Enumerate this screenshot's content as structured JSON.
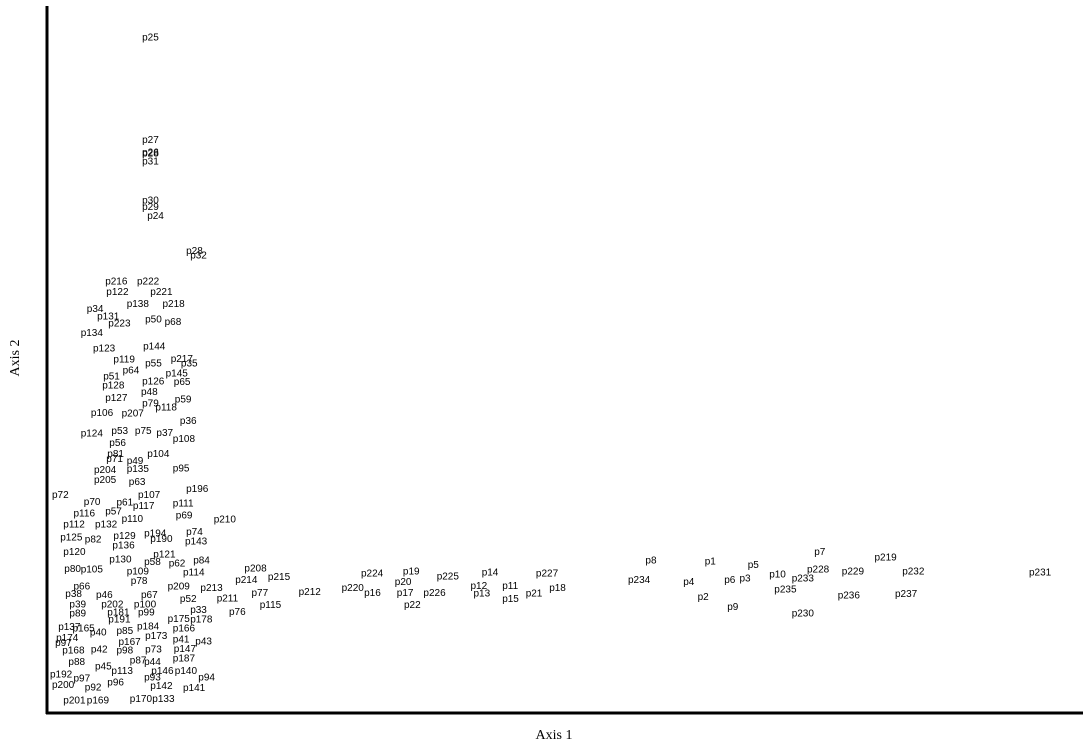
{
  "chart_data": {
    "type": "scatter",
    "title": "",
    "xlabel": "Axis 1",
    "ylabel": "Axis 2",
    "xlim": [
      0,
      1000
    ],
    "ylim": [
      0,
      1000
    ],
    "grid": false,
    "legend": "none",
    "points": [
      {
        "label": "p25",
        "x": 90,
        "y": 973
      },
      {
        "label": "p27",
        "x": 90,
        "y": 823
      },
      {
        "label": "p26",
        "x": 90,
        "y": 805
      },
      {
        "label": "p28",
        "x": 90,
        "y": 803
      },
      {
        "label": "p31",
        "x": 90,
        "y": 792
      },
      {
        "label": "p30",
        "x": 90,
        "y": 735
      },
      {
        "label": "p29",
        "x": 90,
        "y": 725
      },
      {
        "label": "p24",
        "x": 95,
        "y": 712
      },
      {
        "label": "p28",
        "x": 133,
        "y": 661
      },
      {
        "label": "p32",
        "x": 137,
        "y": 654
      },
      {
        "label": "p216",
        "x": 54,
        "y": 616
      },
      {
        "label": "p222",
        "x": 85,
        "y": 616
      },
      {
        "label": "p122",
        "x": 55,
        "y": 601
      },
      {
        "label": "p221",
        "x": 98,
        "y": 601
      },
      {
        "label": "p138",
        "x": 75,
        "y": 583
      },
      {
        "label": "p218",
        "x": 110,
        "y": 583
      },
      {
        "label": "p34",
        "x": 36,
        "y": 576
      },
      {
        "label": "p131",
        "x": 46,
        "y": 565
      },
      {
        "label": "p50",
        "x": 93,
        "y": 561
      },
      {
        "label": "p223",
        "x": 57,
        "y": 555
      },
      {
        "label": "p68",
        "x": 112,
        "y": 557
      },
      {
        "label": "p134",
        "x": 30,
        "y": 541
      },
      {
        "label": "p123",
        "x": 42,
        "y": 518
      },
      {
        "label": "p144",
        "x": 91,
        "y": 521
      },
      {
        "label": "p119",
        "x": 62,
        "y": 502
      },
      {
        "label": "p217",
        "x": 118,
        "y": 503
      },
      {
        "label": "p55",
        "x": 93,
        "y": 496
      },
      {
        "label": "p35",
        "x": 128,
        "y": 496
      },
      {
        "label": "p64",
        "x": 71,
        "y": 486
      },
      {
        "label": "p145",
        "x": 113,
        "y": 482
      },
      {
        "label": "p51",
        "x": 52,
        "y": 477
      },
      {
        "label": "p126",
        "x": 90,
        "y": 470
      },
      {
        "label": "p65",
        "x": 121,
        "y": 469
      },
      {
        "label": "p128",
        "x": 51,
        "y": 464
      },
      {
        "label": "p48",
        "x": 89,
        "y": 455
      },
      {
        "label": "p127",
        "x": 54,
        "y": 446
      },
      {
        "label": "p59",
        "x": 122,
        "y": 444
      },
      {
        "label": "p79",
        "x": 90,
        "y": 438
      },
      {
        "label": "p118",
        "x": 103,
        "y": 432
      },
      {
        "label": "p106",
        "x": 40,
        "y": 424
      },
      {
        "label": "p207",
        "x": 70,
        "y": 423
      },
      {
        "label": "p36",
        "x": 127,
        "y": 412
      },
      {
        "label": "p53",
        "x": 60,
        "y": 398
      },
      {
        "label": "p75",
        "x": 83,
        "y": 398
      },
      {
        "label": "p37",
        "x": 104,
        "y": 395
      },
      {
        "label": "p124",
        "x": 30,
        "y": 394
      },
      {
        "label": "p108",
        "x": 120,
        "y": 386
      },
      {
        "label": "p56",
        "x": 58,
        "y": 380
      },
      {
        "label": "p81",
        "x": 56,
        "y": 364
      },
      {
        "label": "p104",
        "x": 95,
        "y": 364
      },
      {
        "label": "p71",
        "x": 55,
        "y": 357
      },
      {
        "label": "p49",
        "x": 75,
        "y": 354
      },
      {
        "label": "p204",
        "x": 43,
        "y": 341
      },
      {
        "label": "p135",
        "x": 75,
        "y": 342
      },
      {
        "label": "p95",
        "x": 120,
        "y": 343
      },
      {
        "label": "p205",
        "x": 43,
        "y": 326
      },
      {
        "label": "p63",
        "x": 77,
        "y": 323
      },
      {
        "label": "p196",
        "x": 133,
        "y": 313
      },
      {
        "label": "p72",
        "x": 2,
        "y": 304
      },
      {
        "label": "p107",
        "x": 86,
        "y": 304
      },
      {
        "label": "p70",
        "x": 33,
        "y": 294
      },
      {
        "label": "p61",
        "x": 65,
        "y": 293
      },
      {
        "label": "p111",
        "x": 120,
        "y": 292
      },
      {
        "label": "p117",
        "x": 81,
        "y": 288
      },
      {
        "label": "p57",
        "x": 54,
        "y": 280
      },
      {
        "label": "p116",
        "x": 23,
        "y": 277
      },
      {
        "label": "p69",
        "x": 123,
        "y": 274
      },
      {
        "label": "p210",
        "x": 160,
        "y": 268
      },
      {
        "label": "p110",
        "x": 70,
        "y": 269
      },
      {
        "label": "p112",
        "x": 13,
        "y": 261
      },
      {
        "label": "p132",
        "x": 44,
        "y": 261
      },
      {
        "label": "p74",
        "x": 133,
        "y": 250
      },
      {
        "label": "p194",
        "x": 92,
        "y": 248
      },
      {
        "label": "p129",
        "x": 62,
        "y": 244
      },
      {
        "label": "p125",
        "x": 10,
        "y": 242
      },
      {
        "label": "p82",
        "x": 34,
        "y": 239
      },
      {
        "label": "p190",
        "x": 98,
        "y": 240
      },
      {
        "label": "p143",
        "x": 132,
        "y": 236
      },
      {
        "label": "p136",
        "x": 61,
        "y": 230
      },
      {
        "label": "p120",
        "x": 13,
        "y": 221
      },
      {
        "label": "p121",
        "x": 101,
        "y": 217
      },
      {
        "label": "p130",
        "x": 58,
        "y": 210
      },
      {
        "label": "p58",
        "x": 92,
        "y": 206
      },
      {
        "label": "p62",
        "x": 116,
        "y": 204
      },
      {
        "label": "p84",
        "x": 140,
        "y": 208
      },
      {
        "label": "p80",
        "x": 14,
        "y": 196
      },
      {
        "label": "p105",
        "x": 30,
        "y": 195
      },
      {
        "label": "p109",
        "x": 75,
        "y": 192
      },
      {
        "label": "p114",
        "x": 130,
        "y": 191
      },
      {
        "label": "p208",
        "x": 190,
        "y": 197
      },
      {
        "label": "p78",
        "x": 79,
        "y": 178
      },
      {
        "label": "p214",
        "x": 181,
        "y": 180
      },
      {
        "label": "p215",
        "x": 213,
        "y": 184
      },
      {
        "label": "p66",
        "x": 23,
        "y": 170
      },
      {
        "label": "p209",
        "x": 115,
        "y": 170
      },
      {
        "label": "p213",
        "x": 147,
        "y": 168
      },
      {
        "label": "p77",
        "x": 197,
        "y": 161
      },
      {
        "label": "p212",
        "x": 243,
        "y": 162
      },
      {
        "label": "p38",
        "x": 15,
        "y": 159
      },
      {
        "label": "p46",
        "x": 45,
        "y": 158
      },
      {
        "label": "p67",
        "x": 89,
        "y": 158
      },
      {
        "label": "p211",
        "x": 163,
        "y": 153
      },
      {
        "label": "p52",
        "x": 127,
        "y": 152
      },
      {
        "label": "p115",
        "x": 205,
        "y": 143
      },
      {
        "label": "p39",
        "x": 19,
        "y": 144
      },
      {
        "label": "p202",
        "x": 50,
        "y": 144
      },
      {
        "label": "p100",
        "x": 82,
        "y": 144
      },
      {
        "label": "p33",
        "x": 137,
        "y": 136
      },
      {
        "label": "p76",
        "x": 175,
        "y": 133
      },
      {
        "label": "p89",
        "x": 19,
        "y": 131
      },
      {
        "label": "p181",
        "x": 56,
        "y": 132
      },
      {
        "label": "p99",
        "x": 86,
        "y": 132
      },
      {
        "label": "p175",
        "x": 115,
        "y": 123
      },
      {
        "label": "p178",
        "x": 137,
        "y": 122
      },
      {
        "label": "p191",
        "x": 57,
        "y": 122
      },
      {
        "label": "p137",
        "x": 8,
        "y": 111
      },
      {
        "label": "p165",
        "x": 22,
        "y": 109
      },
      {
        "label": "p184",
        "x": 85,
        "y": 112
      },
      {
        "label": "p166",
        "x": 120,
        "y": 109
      },
      {
        "label": "p40",
        "x": 39,
        "y": 103
      },
      {
        "label": "p85",
        "x": 65,
        "y": 105
      },
      {
        "label": "p173",
        "x": 93,
        "y": 98
      },
      {
        "label": "p174",
        "x": 6,
        "y": 95
      },
      {
        "label": "p41",
        "x": 120,
        "y": 93
      },
      {
        "label": "p43",
        "x": 142,
        "y": 90
      },
      {
        "label": "p97",
        "x": 5,
        "y": 88
      },
      {
        "label": "p167",
        "x": 67,
        "y": 89
      },
      {
        "label": "p147",
        "x": 121,
        "y": 79
      },
      {
        "label": "p168",
        "x": 12,
        "y": 77
      },
      {
        "label": "p42",
        "x": 40,
        "y": 78
      },
      {
        "label": "p98",
        "x": 65,
        "y": 77
      },
      {
        "label": "p73",
        "x": 93,
        "y": 78
      },
      {
        "label": "p187",
        "x": 120,
        "y": 65
      },
      {
        "label": "p88",
        "x": 18,
        "y": 60
      },
      {
        "label": "p87",
        "x": 78,
        "y": 62
      },
      {
        "label": "p44",
        "x": 92,
        "y": 60
      },
      {
        "label": "p45",
        "x": 44,
        "y": 53
      },
      {
        "label": "p113",
        "x": 60,
        "y": 47
      },
      {
        "label": "p146",
        "x": 99,
        "y": 47
      },
      {
        "label": "p140",
        "x": 122,
        "y": 47
      },
      {
        "label": "p192",
        "x": 0,
        "y": 42
      },
      {
        "label": "p97",
        "x": 23,
        "y": 36
      },
      {
        "label": "p93",
        "x": 92,
        "y": 37
      },
      {
        "label": "p94",
        "x": 145,
        "y": 37
      },
      {
        "label": "p96",
        "x": 56,
        "y": 30
      },
      {
        "label": "p142",
        "x": 98,
        "y": 25
      },
      {
        "label": "p141",
        "x": 130,
        "y": 22
      },
      {
        "label": "p200",
        "x": 2,
        "y": 26
      },
      {
        "label": "p92",
        "x": 34,
        "y": 23
      },
      {
        "label": "p201",
        "x": 13,
        "y": 4
      },
      {
        "label": "p169",
        "x": 36,
        "y": 4
      },
      {
        "label": "p170",
        "x": 78,
        "y": 6
      },
      {
        "label": "p133",
        "x": 100,
        "y": 6
      },
      {
        "label": "p224",
        "x": 304,
        "y": 189
      },
      {
        "label": "p19",
        "x": 345,
        "y": 192
      },
      {
        "label": "p20",
        "x": 337,
        "y": 177
      },
      {
        "label": "p220",
        "x": 285,
        "y": 168
      },
      {
        "label": "p16",
        "x": 307,
        "y": 161
      },
      {
        "label": "p17",
        "x": 339,
        "y": 161
      },
      {
        "label": "p226",
        "x": 365,
        "y": 161
      },
      {
        "label": "p22",
        "x": 346,
        "y": 143
      },
      {
        "label": "p225",
        "x": 378,
        "y": 185
      },
      {
        "label": "p14",
        "x": 422,
        "y": 191
      },
      {
        "label": "p12",
        "x": 411,
        "y": 171
      },
      {
        "label": "p11",
        "x": 442,
        "y": 171
      },
      {
        "label": "p13",
        "x": 414,
        "y": 160
      },
      {
        "label": "p15",
        "x": 442,
        "y": 152
      },
      {
        "label": "p227",
        "x": 475,
        "y": 189
      },
      {
        "label": "p21",
        "x": 465,
        "y": 160
      },
      {
        "label": "p18",
        "x": 488,
        "y": 168
      },
      {
        "label": "p8",
        "x": 582,
        "y": 208
      },
      {
        "label": "p234",
        "x": 565,
        "y": 180
      },
      {
        "label": "p1",
        "x": 640,
        "y": 207
      },
      {
        "label": "p4",
        "x": 619,
        "y": 177
      },
      {
        "label": "p6",
        "x": 659,
        "y": 180
      },
      {
        "label": "p3",
        "x": 674,
        "y": 182
      },
      {
        "label": "p5",
        "x": 682,
        "y": 202
      },
      {
        "label": "p2",
        "x": 633,
        "y": 155
      },
      {
        "label": "p9",
        "x": 662,
        "y": 140
      },
      {
        "label": "p10",
        "x": 703,
        "y": 188
      },
      {
        "label": "p7",
        "x": 747,
        "y": 221
      },
      {
        "label": "p228",
        "x": 740,
        "y": 195
      },
      {
        "label": "p233",
        "x": 725,
        "y": 182
      },
      {
        "label": "p229",
        "x": 774,
        "y": 192
      },
      {
        "label": "p219",
        "x": 806,
        "y": 213
      },
      {
        "label": "p232",
        "x": 833,
        "y": 192
      },
      {
        "label": "p235",
        "x": 708,
        "y": 166
      },
      {
        "label": "p236",
        "x": 770,
        "y": 157
      },
      {
        "label": "p237",
        "x": 826,
        "y": 159
      },
      {
        "label": "p230",
        "x": 725,
        "y": 131
      },
      {
        "label": "p231",
        "x": 957,
        "y": 191
      }
    ]
  }
}
